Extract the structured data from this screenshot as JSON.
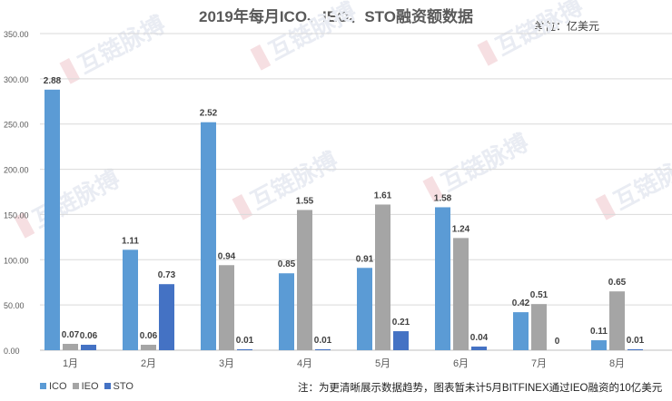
{
  "chart_data": {
    "type": "bar",
    "title": "2019年每月ICO、IEO、STO融资额数据",
    "unit_label": "单位：亿美元",
    "note": "注：为更清晰展示数据趋势，图表暂未计5月BITFINEX通过IEO融资的10亿美元",
    "categories": [
      "1月",
      "2月",
      "3月",
      "4月",
      "5月",
      "6月",
      "7月",
      "8月"
    ],
    "y_ticks": [
      "0.00",
      "50.00",
      "100.00",
      "150.00",
      "200.00",
      "250.00",
      "300.00",
      "350.00"
    ],
    "ylim": [
      0,
      350
    ],
    "grid": true,
    "legend_position": "bottom-left",
    "series": [
      {
        "name": "ICO",
        "color": "#5b9bd5",
        "values": [
          288,
          111,
          252,
          85,
          91,
          158,
          42,
          11
        ],
        "labels": [
          "2.88",
          "1.11",
          "2.52",
          "0.85",
          "0.91",
          "1.58",
          "0.42",
          "0.11"
        ]
      },
      {
        "name": "IEO",
        "color": "#a5a5a5",
        "values": [
          7,
          6,
          94,
          155,
          161,
          124,
          51,
          65
        ],
        "labels": [
          "0.07",
          "0.06",
          "0.94",
          "1.55",
          "1.61",
          "1.24",
          "0.51",
          "0.65"
        ]
      },
      {
        "name": "STO",
        "color": "#4472c4",
        "values": [
          6,
          73,
          1,
          1,
          21,
          4,
          0,
          1
        ],
        "labels": [
          "0.06",
          "0.73",
          "0.01",
          "0.01",
          "0.21",
          "0.04",
          "0",
          "0.01"
        ]
      }
    ]
  },
  "watermark": "互链脉搏"
}
